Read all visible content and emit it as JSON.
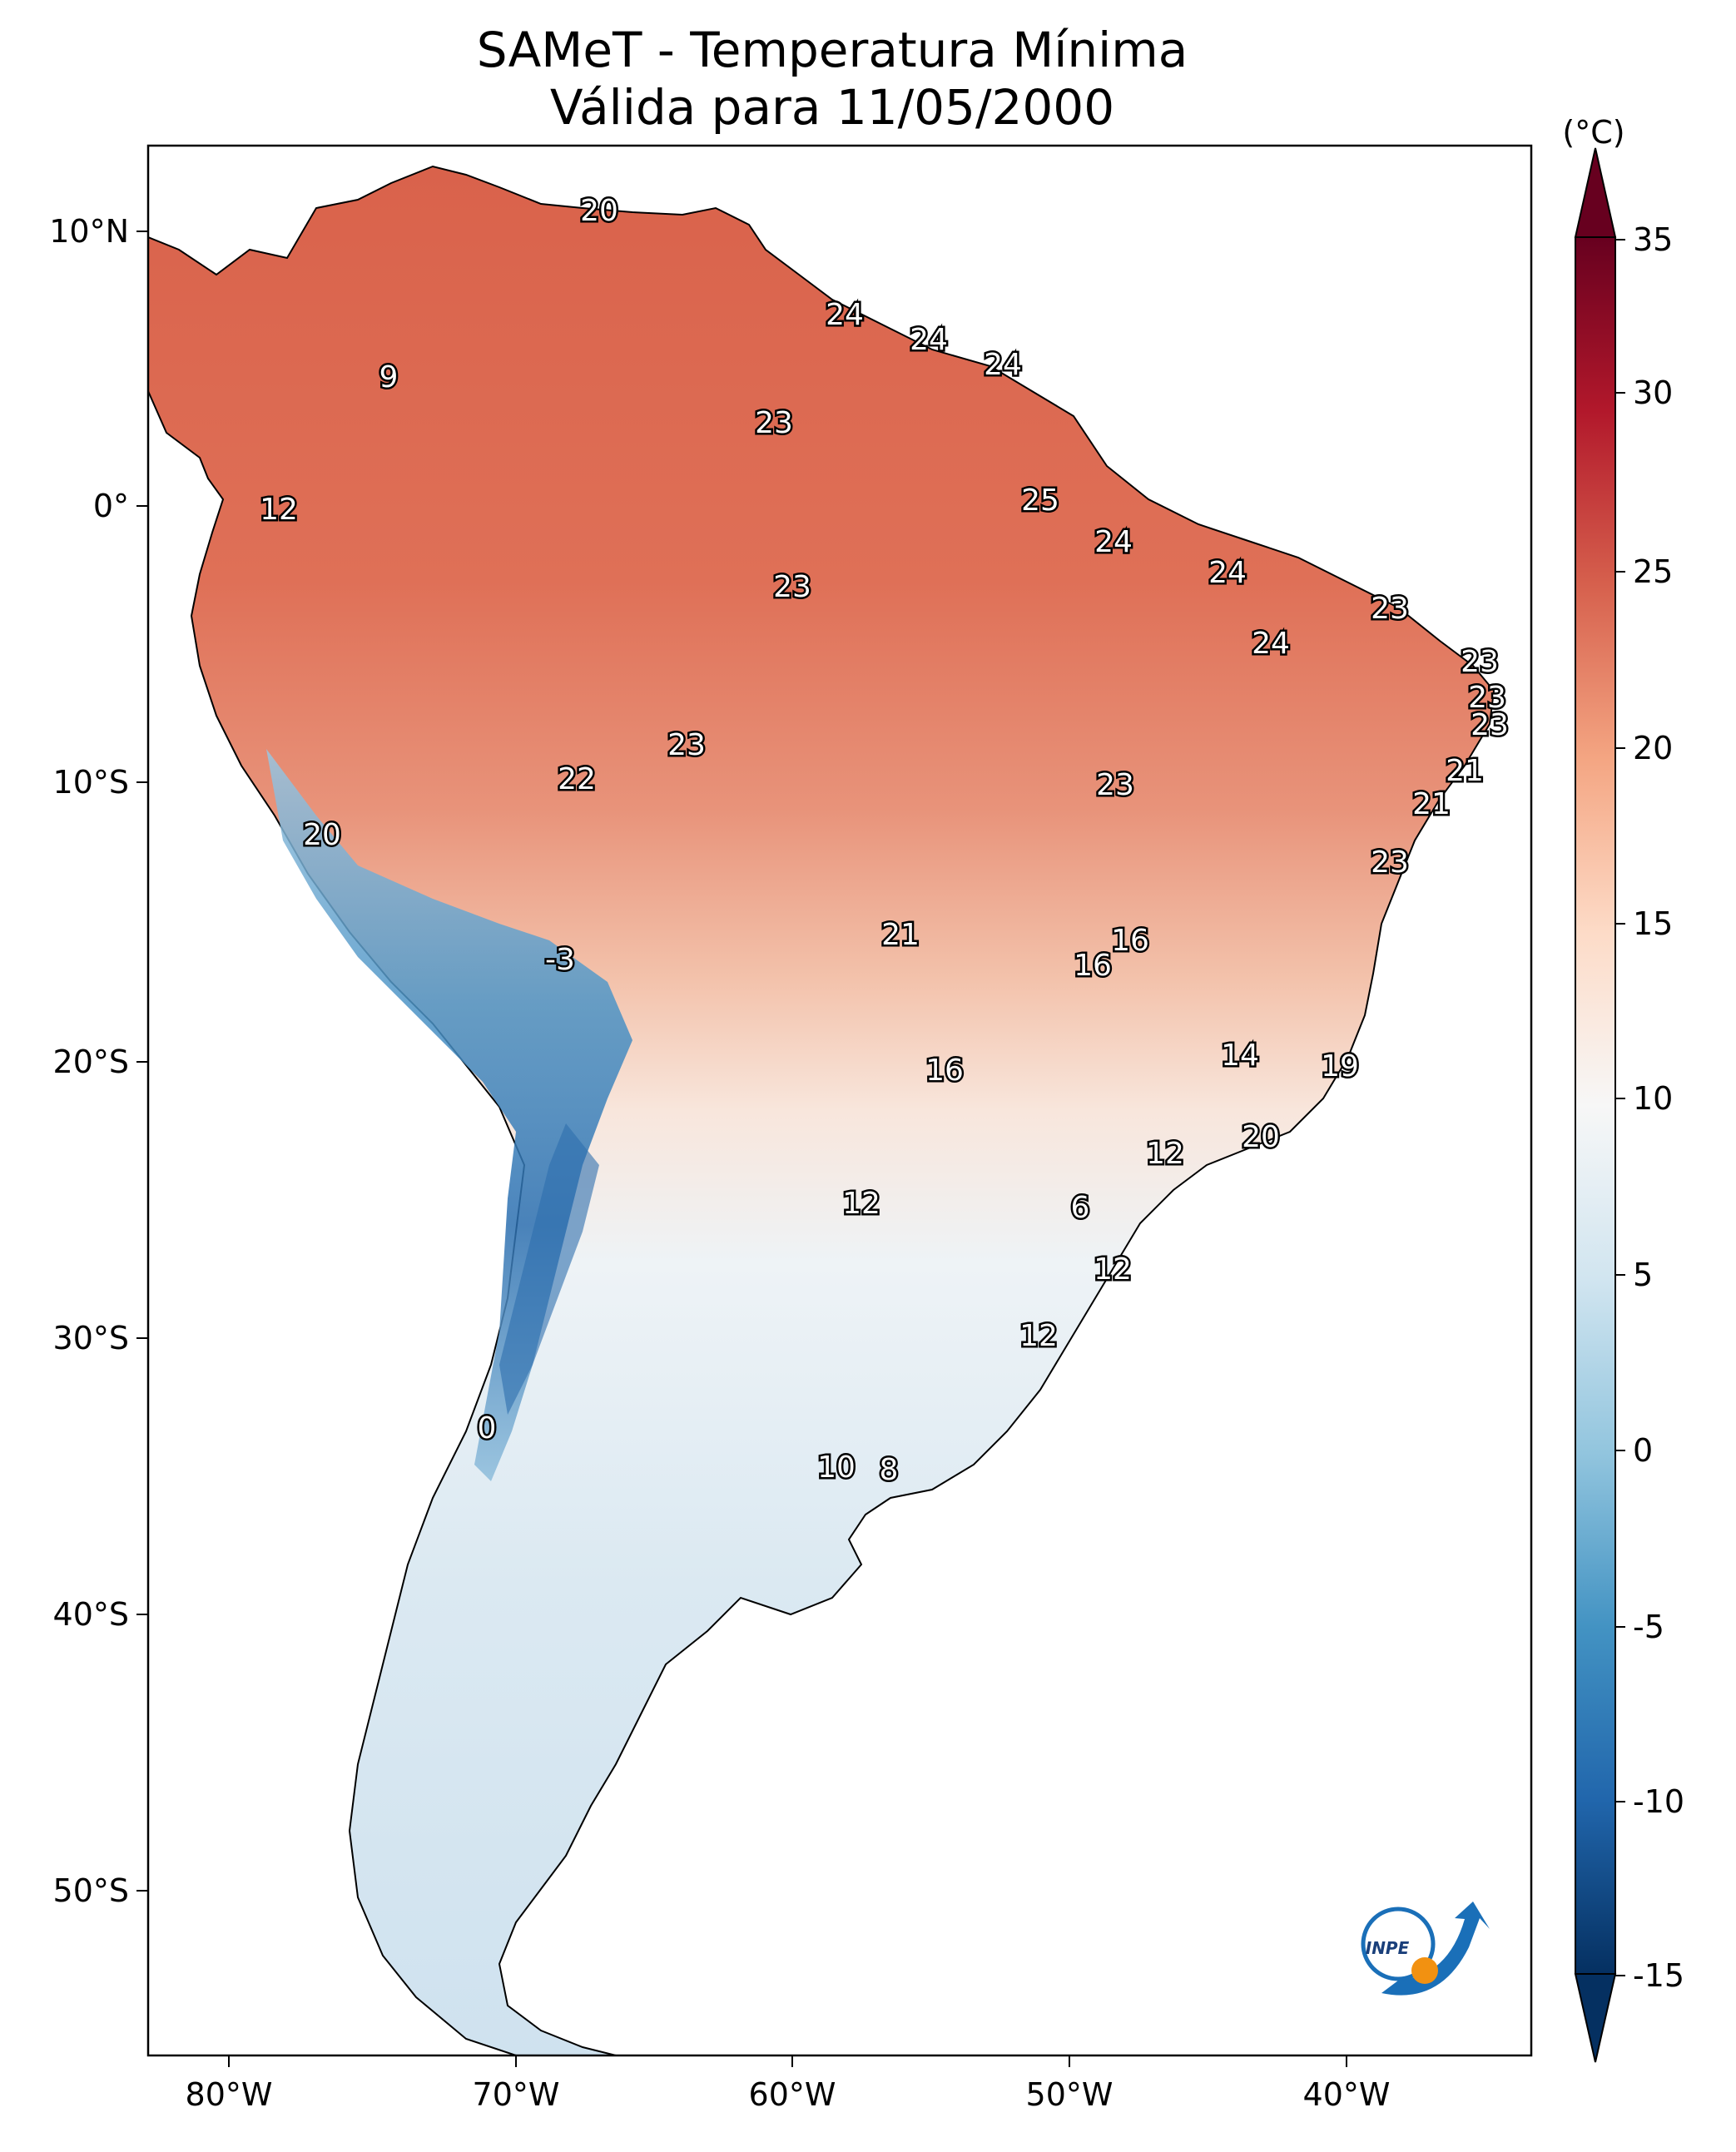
{
  "title": "SAMeT - Temperatura Mínima",
  "subtitle": "Válida para 11/05/2000",
  "colorbar": {
    "unit": "(°C)",
    "ticks": [
      "35",
      "30",
      "25",
      "20",
      "15",
      "10",
      "5",
      "0",
      "-5",
      "-10",
      "-15"
    ],
    "colors": [
      "#053061",
      "#2166ac",
      "#4393c3",
      "#92c5de",
      "#d1e5f0",
      "#f7f7f7",
      "#fddbc7",
      "#f4a582",
      "#d6604d",
      "#b2182b",
      "#67001f"
    ]
  },
  "axes": {
    "lat_ticks": [
      "10°N",
      "0°",
      "10°S",
      "20°S",
      "30°S",
      "40°S",
      "50°S"
    ],
    "lon_ticks": [
      "80°W",
      "70°W",
      "60°W",
      "50°W",
      "40°W"
    ]
  },
  "logo": {
    "text": "INPE"
  },
  "station_labels": [
    {
      "text": "20"
    },
    {
      "text": "9"
    },
    {
      "text": "24"
    },
    {
      "text": "24"
    },
    {
      "text": "24"
    },
    {
      "text": "23"
    },
    {
      "text": "12"
    },
    {
      "text": "25"
    },
    {
      "text": "24"
    },
    {
      "text": "24"
    },
    {
      "text": "23"
    },
    {
      "text": "23"
    },
    {
      "text": "24"
    },
    {
      "text": "23"
    },
    {
      "text": "23"
    },
    {
      "text": "23"
    },
    {
      "text": "23"
    },
    {
      "text": "22"
    },
    {
      "text": "23"
    },
    {
      "text": "21"
    },
    {
      "text": "21"
    },
    {
      "text": "20"
    },
    {
      "text": "23"
    },
    {
      "text": "16"
    },
    {
      "text": "21"
    },
    {
      "text": "16"
    },
    {
      "text": "-3"
    },
    {
      "text": "16"
    },
    {
      "text": "14"
    },
    {
      "text": "19"
    },
    {
      "text": "20"
    },
    {
      "text": "12"
    },
    {
      "text": "6"
    },
    {
      "text": "12"
    },
    {
      "text": "12"
    },
    {
      "text": "12"
    },
    {
      "text": "0"
    },
    {
      "text": "10"
    },
    {
      "text": "8"
    }
  ]
}
